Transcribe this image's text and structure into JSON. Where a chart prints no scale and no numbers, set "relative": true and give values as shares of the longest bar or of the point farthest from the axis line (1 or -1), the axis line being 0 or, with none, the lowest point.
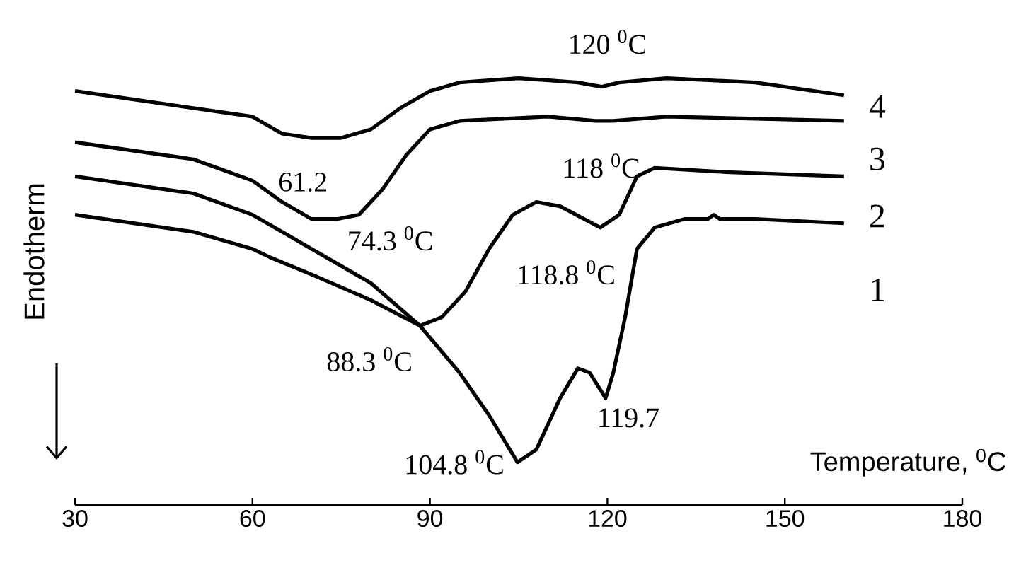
{
  "chart_data": {
    "type": "line",
    "relative": true,
    "xlabel": "Temperature, $^{0}$C",
    "ylabel": "Endotherm",
    "xlim": [
      30,
      180
    ],
    "xticks": [
      30,
      60,
      90,
      120,
      150,
      180
    ],
    "marker": "none",
    "line_style": "solid",
    "series": [
      {
        "name": "1",
        "color": "#000000",
        "x": [
          30,
          50,
          60,
          63,
          70,
          80,
          88.3,
          95,
          100,
          104.8,
          108,
          112,
          115,
          117,
          119.7,
          121,
          123,
          125,
          128,
          133,
          137,
          138,
          139,
          145,
          160
        ],
        "values": [
          0.68,
          0.64,
          0.6,
          0.58,
          0.54,
          0.48,
          0.42,
          0.31,
          0.21,
          0.1,
          0.13,
          0.25,
          0.32,
          0.31,
          0.25,
          0.31,
          0.44,
          0.6,
          0.65,
          0.67,
          0.67,
          0.68,
          0.67,
          0.67,
          0.66
        ]
      },
      {
        "name": "2",
        "color": "#000000",
        "x": [
          30,
          50,
          60,
          65,
          70,
          80,
          88.3,
          92,
          96,
          100,
          104,
          108,
          112,
          118.8,
          122,
          125,
          128,
          140,
          160
        ],
        "values": [
          0.77,
          0.73,
          0.68,
          0.64,
          0.6,
          0.52,
          0.42,
          0.44,
          0.5,
          0.6,
          0.68,
          0.71,
          0.7,
          0.65,
          0.68,
          0.77,
          0.79,
          0.78,
          0.77
        ]
      },
      {
        "name": "3",
        "color": "#000000",
        "x": [
          30,
          50,
          60,
          65,
          70,
          74.3,
          78,
          82,
          86,
          90,
          95,
          110,
          118,
          121,
          130,
          160
        ],
        "values": [
          0.85,
          0.81,
          0.76,
          0.71,
          0.67,
          0.67,
          0.68,
          0.74,
          0.82,
          0.88,
          0.9,
          0.91,
          0.9,
          0.9,
          0.91,
          0.9
        ]
      },
      {
        "name": "4",
        "color": "#000000",
        "x": [
          30,
          60,
          65,
          70,
          75,
          80,
          85,
          90,
          95,
          105,
          115,
          119,
          122,
          130,
          145,
          160
        ],
        "values": [
          0.97,
          0.91,
          0.87,
          0.86,
          0.86,
          0.88,
          0.93,
          0.97,
          0.99,
          1.0,
          0.99,
          0.98,
          0.99,
          1.0,
          0.99,
          0.96
        ]
      }
    ],
    "annotations": [
      {
        "text": "120 $^{0}$C",
        "x": 120,
        "y": 0.98
      },
      {
        "text": "61.2",
        "x": 61.2,
        "y": 0.75
      },
      {
        "text": "118 $^{0}$C",
        "x": 118,
        "y": 0.9
      },
      {
        "text": "74.3 $^{0}$C",
        "x": 74.3,
        "y": 0.67
      },
      {
        "text": "118.8 $^{0}$C",
        "x": 118.8,
        "y": 0.65
      },
      {
        "text": "88.3 $^{0}$C",
        "x": 88.3,
        "y": 0.42
      },
      {
        "text": "104.8 $^{0}$C",
        "x": 104.8,
        "y": 0.1
      },
      {
        "text": "119.7",
        "x": 119.7,
        "y": 0.25
      }
    ]
  }
}
